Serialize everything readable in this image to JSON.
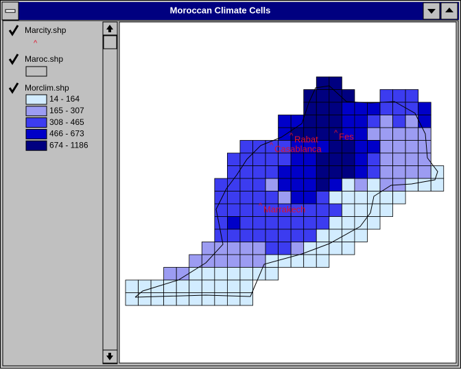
{
  "window": {
    "title": "Moroccan Climate Cells"
  },
  "layers": [
    {
      "name": "Marcity.shp"
    },
    {
      "name": "Maroc.shp"
    },
    {
      "name": "Morclim.shp",
      "classes": [
        "14 - 164",
        "165 - 307",
        "308 - 465",
        "466 - 673",
        "674 - 1186"
      ]
    }
  ],
  "map": {
    "cities": [
      "Rabat",
      "Fes",
      "Casablanca",
      "Marrakech"
    ]
  }
}
